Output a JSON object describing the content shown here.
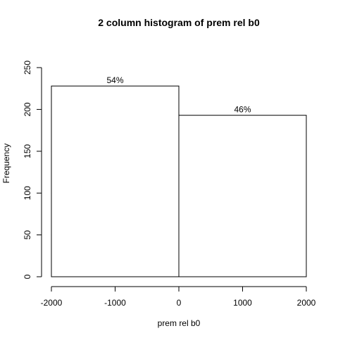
{
  "chart_data": {
    "type": "bar",
    "title": "2 column histogram of prem rel b0",
    "xlabel": "prem rel b0",
    "ylabel": "Frequency",
    "bins": [
      {
        "from": -2000,
        "to": 0,
        "count": 228,
        "label": "54%"
      },
      {
        "from": 0,
        "to": 2000,
        "count": 193,
        "label": "46%"
      }
    ],
    "xlim": [
      -2000,
      2000
    ],
    "ylim": [
      0,
      250
    ],
    "x_ticks": [
      -2000,
      -1000,
      0,
      1000,
      2000
    ],
    "x_tick_labels": [
      "-2000",
      "-1000",
      "0",
      "1000",
      "2000"
    ],
    "y_ticks": [
      0,
      50,
      100,
      150,
      200,
      250
    ],
    "y_tick_labels": [
      "0",
      "50",
      "100",
      "150",
      "200",
      "250"
    ],
    "colors": {
      "bar_fill": "#ffffff",
      "bar_stroke": "#000000",
      "axis": "#000000"
    },
    "grid": false
  }
}
